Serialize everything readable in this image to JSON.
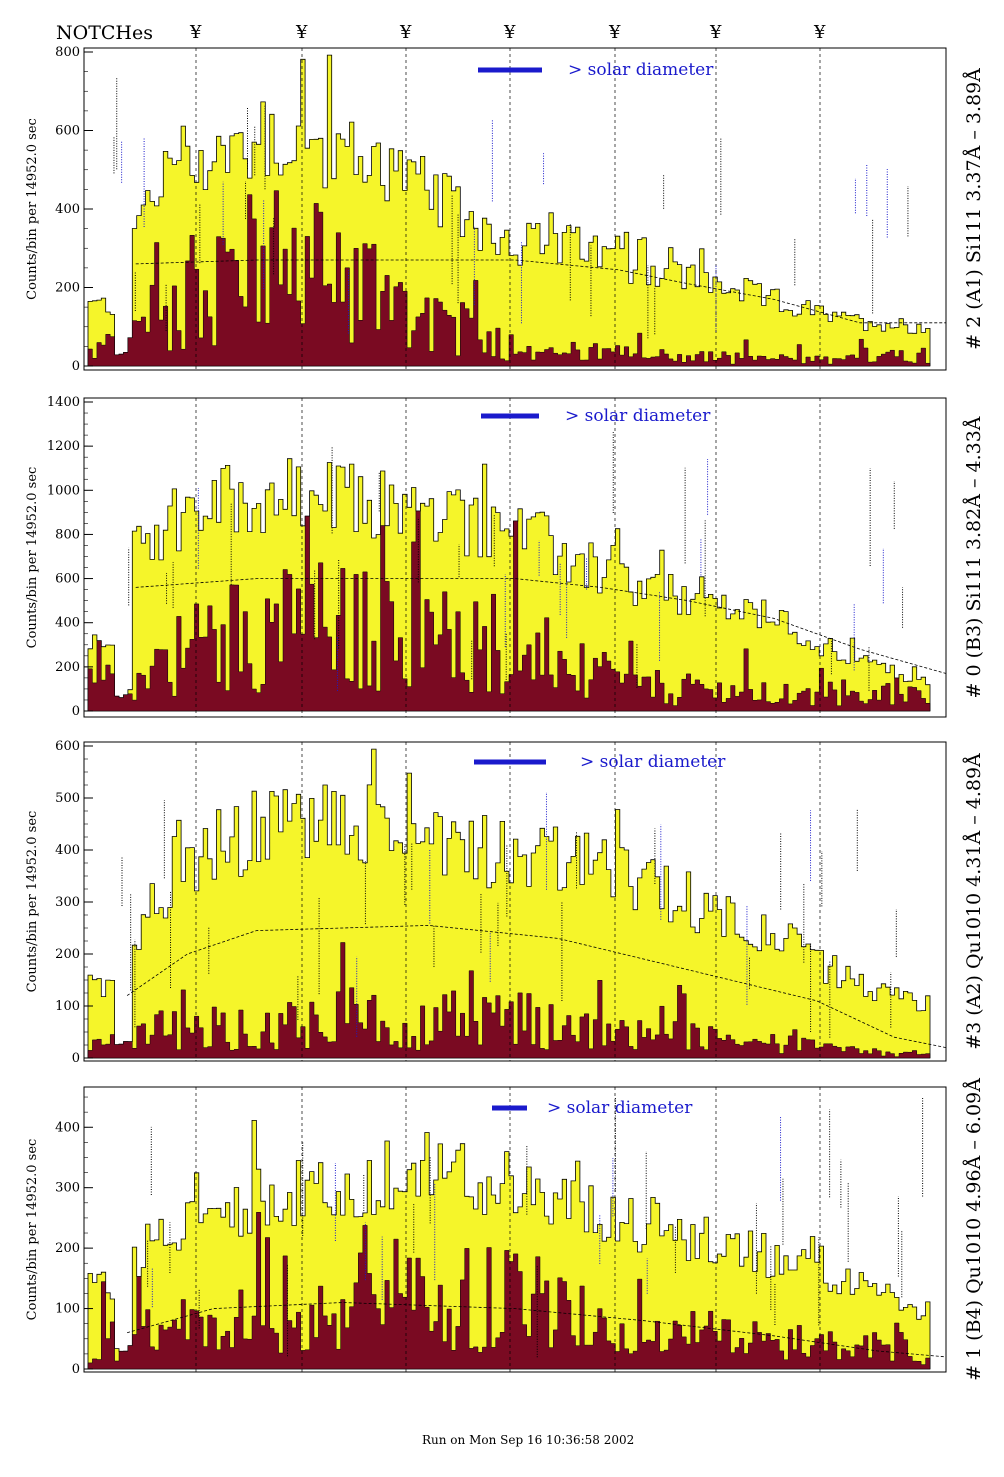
{
  "header": {
    "notches_label": "NOTCHes",
    "notch_glyph": "¥",
    "notch_count": 7
  },
  "footer": {
    "run_text": "Run on Mon Sep 16 10:36:58 2002"
  },
  "colors": {
    "fill_yellow": "#f5f52a",
    "fill_maroon": "#7a0a22",
    "solar_blue": "#1a1acc",
    "line_black": "#000000"
  },
  "chart_data": [
    {
      "type": "bar",
      "side_label": "# 2 (A1) Si111  3.37Å – 3.89Å",
      "ylabel": "Counts/bin per  14952.0 sec",
      "solar_label": "> solar diameter",
      "ylim": [
        0,
        800
      ],
      "yticks": [
        0,
        200,
        400,
        600,
        800
      ],
      "series": [
        {
          "name": "",
          "color": "yellow",
          "envelope": [
            [
              0,
              160
            ],
            [
              0.04,
              160
            ],
            [
              0.05,
              360
            ],
            [
              0.1,
              540
            ],
            [
              0.16,
              560
            ],
            [
              0.22,
              600
            ],
            [
              0.3,
              560
            ],
            [
              0.36,
              520
            ],
            [
              0.42,
              430
            ],
            [
              0.5,
              330
            ],
            [
              0.58,
              310
            ],
            [
              0.66,
              260
            ],
            [
              0.74,
              220
            ],
            [
              0.82,
              170
            ],
            [
              0.9,
              120
            ],
            [
              0.96,
              110
            ],
            [
              1,
              100
            ]
          ]
        },
        {
          "name": "",
          "color": "maroon",
          "envelope": [
            [
              0,
              40
            ],
            [
              0.05,
              80
            ],
            [
              0.1,
              180
            ],
            [
              0.16,
              260
            ],
            [
              0.22,
              300
            ],
            [
              0.3,
              260
            ],
            [
              0.36,
              210
            ],
            [
              0.42,
              120
            ],
            [
              0.5,
              60
            ],
            [
              0.58,
              40
            ],
            [
              0.66,
              30
            ],
            [
              0.74,
              25
            ],
            [
              0.82,
              20
            ],
            [
              0.9,
              15
            ],
            [
              0.96,
              40
            ],
            [
              1,
              30
            ]
          ]
        }
      ],
      "model_curve": [
        [
          0.06,
          260
        ],
        [
          0.2,
          270
        ],
        [
          0.5,
          270
        ],
        [
          0.62,
          245
        ],
        [
          0.7,
          210
        ],
        [
          0.8,
          170
        ],
        [
          0.9,
          110
        ],
        [
          1,
          110
        ]
      ]
    },
    {
      "type": "bar",
      "side_label": "# 0 (B3) Si111  3.82Å – 4.33Å",
      "ylabel": "Counts/bin per  14952.0 sec",
      "solar_label": "> solar diameter",
      "ylim": [
        0,
        1400
      ],
      "yticks": [
        0,
        200,
        400,
        600,
        800,
        1000,
        1200,
        1400
      ],
      "series": [
        {
          "name": "",
          "color": "yellow",
          "envelope": [
            [
              0,
              300
            ],
            [
              0.04,
              300
            ],
            [
              0.05,
              700
            ],
            [
              0.1,
              920
            ],
            [
              0.16,
              980
            ],
            [
              0.22,
              1000
            ],
            [
              0.3,
              980
            ],
            [
              0.36,
              960
            ],
            [
              0.42,
              900
            ],
            [
              0.5,
              860
            ],
            [
              0.58,
              700
            ],
            [
              0.66,
              560
            ],
            [
              0.74,
              520
            ],
            [
              0.82,
              420
            ],
            [
              0.9,
              260
            ],
            [
              0.96,
              180
            ],
            [
              1,
              140
            ]
          ]
        },
        {
          "name": "",
          "color": "maroon",
          "envelope": [
            [
              0,
              120
            ],
            [
              0.05,
              160
            ],
            [
              0.1,
              280
            ],
            [
              0.16,
              380
            ],
            [
              0.22,
              420
            ],
            [
              0.3,
              440
            ],
            [
              0.36,
              380
            ],
            [
              0.42,
              320
            ],
            [
              0.5,
              360
            ],
            [
              0.58,
              200
            ],
            [
              0.66,
              120
            ],
            [
              0.74,
              100
            ],
            [
              0.82,
              80
            ],
            [
              0.9,
              60
            ],
            [
              0.96,
              100
            ],
            [
              1,
              60
            ]
          ]
        }
      ],
      "model_curve": [
        [
          0.06,
          560
        ],
        [
          0.2,
          600
        ],
        [
          0.5,
          600
        ],
        [
          0.6,
          560
        ],
        [
          0.7,
          500
        ],
        [
          0.8,
          420
        ],
        [
          0.9,
          280
        ],
        [
          1,
          170
        ]
      ]
    },
    {
      "type": "bar",
      "side_label": "#3 (A2) Qu1010  4.31Å – 4.89Å",
      "ylabel": "Counts/bin per  14952.0 sec",
      "solar_label": "> solar diameter",
      "ylim": [
        0,
        600
      ],
      "yticks": [
        0,
        100,
        200,
        300,
        400,
        500,
        600
      ],
      "series": [
        {
          "name": "",
          "color": "yellow",
          "envelope": [
            [
              0,
              150
            ],
            [
              0.04,
              150
            ],
            [
              0.06,
              260
            ],
            [
              0.1,
              370
            ],
            [
              0.16,
              420
            ],
            [
              0.22,
              460
            ],
            [
              0.3,
              470
            ],
            [
              0.36,
              450
            ],
            [
              0.42,
              440
            ],
            [
              0.5,
              410
            ],
            [
              0.58,
              380
            ],
            [
              0.66,
              340
            ],
            [
              0.74,
              300
            ],
            [
              0.82,
              240
            ],
            [
              0.9,
              160
            ],
            [
              0.96,
              120
            ],
            [
              1,
              110
            ]
          ]
        },
        {
          "name": "",
          "color": "maroon",
          "envelope": [
            [
              0,
              20
            ],
            [
              0.05,
              40
            ],
            [
              0.1,
              70
            ],
            [
              0.16,
              60
            ],
            [
              0.22,
              80
            ],
            [
              0.3,
              90
            ],
            [
              0.36,
              70
            ],
            [
              0.42,
              80
            ],
            [
              0.5,
              90
            ],
            [
              0.58,
              60
            ],
            [
              0.66,
              50
            ],
            [
              0.74,
              40
            ],
            [
              0.82,
              30
            ],
            [
              0.9,
              15
            ],
            [
              0.96,
              10
            ],
            [
              1,
              10
            ]
          ]
        }
      ],
      "model_curve": [
        [
          0.05,
          120
        ],
        [
          0.12,
          200
        ],
        [
          0.2,
          245
        ],
        [
          0.4,
          255
        ],
        [
          0.55,
          230
        ],
        [
          0.7,
          170
        ],
        [
          0.85,
          110
        ],
        [
          0.94,
          40
        ],
        [
          1,
          20
        ]
      ]
    },
    {
      "type": "bar",
      "side_label": "# 1 (B4) Qu1010  4.96Å – 6.09Å",
      "ylabel": "Counts/bin per  14952.0 sec",
      "solar_label": "> solar diameter",
      "ylim": [
        0,
        460
      ],
      "yticks": [
        0,
        100,
        200,
        300,
        400
      ],
      "series": [
        {
          "name": "",
          "color": "yellow",
          "envelope": [
            [
              0,
              140
            ],
            [
              0.04,
              150
            ],
            [
              0.06,
              200
            ],
            [
              0.1,
              240
            ],
            [
              0.16,
              270
            ],
            [
              0.22,
              300
            ],
            [
              0.3,
              300
            ],
            [
              0.36,
              300
            ],
            [
              0.42,
              330
            ],
            [
              0.5,
              320
            ],
            [
              0.58,
              280
            ],
            [
              0.66,
              240
            ],
            [
              0.74,
              220
            ],
            [
              0.82,
              190
            ],
            [
              0.9,
              150
            ],
            [
              0.96,
              120
            ],
            [
              1,
              100
            ]
          ]
        },
        {
          "name": "",
          "color": "maroon",
          "envelope": [
            [
              0,
              40
            ],
            [
              0.05,
              60
            ],
            [
              0.1,
              70
            ],
            [
              0.16,
              80
            ],
            [
              0.22,
              90
            ],
            [
              0.3,
              100
            ],
            [
              0.36,
              110
            ],
            [
              0.42,
              130
            ],
            [
              0.5,
              140
            ],
            [
              0.58,
              90
            ],
            [
              0.66,
              70
            ],
            [
              0.74,
              60
            ],
            [
              0.82,
              50
            ],
            [
              0.9,
              40
            ],
            [
              0.96,
              40
            ],
            [
              1,
              30
            ]
          ]
        }
      ],
      "model_curve": [
        [
          0.05,
          60
        ],
        [
          0.15,
          100
        ],
        [
          0.3,
          110
        ],
        [
          0.5,
          100
        ],
        [
          0.65,
          80
        ],
        [
          0.8,
          55
        ],
        [
          0.92,
          30
        ],
        [
          1,
          20
        ]
      ]
    }
  ]
}
